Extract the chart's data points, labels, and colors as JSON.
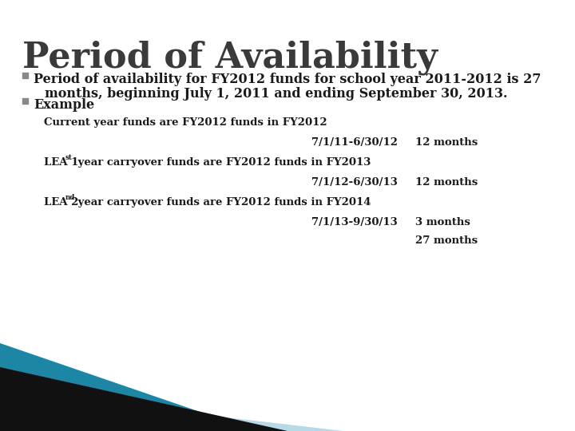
{
  "title": "Period of Availability",
  "title_color": "#3a3a3a",
  "title_fontsize": 32,
  "background_color": "#ffffff",
  "bullet1_line1": "Period of availability for FY2012 funds for school year 2011-2012 is 27",
  "bullet1_line2": "months, beginning July 1, 2011 and ending September 30, 2013.",
  "bullet2": "Example",
  "bullet_fontsize": 11.5,
  "bullet_color": "#1a1a1a",
  "section1_label": "Current year funds are FY2012 funds in FY2012",
  "section1_date": "7/1/11-6/30/12",
  "section1_months": "12 months",
  "section2_label_pre": "LEA 1",
  "section2_label_sup": "st",
  "section2_label_post": " year carryover funds are FY2012 funds in FY2013",
  "section2_date": "7/1/12-6/30/13",
  "section2_months": "12 months",
  "section3_label_pre": "LEA 2",
  "section3_label_sup": "nd",
  "section3_label_post": " year carryover funds are FY2012 funds in FY2014",
  "section3_date": "7/1/13-9/30/13",
  "section3_months": "3 months",
  "total_months": "27 months",
  "section_fontsize": 9.5,
  "section_color": "#1a1a1a",
  "teal_dark": "#1b7a96",
  "teal_light": "#25a5c8",
  "light_blue": "#b8d9e8",
  "black_stripe": "#111111"
}
